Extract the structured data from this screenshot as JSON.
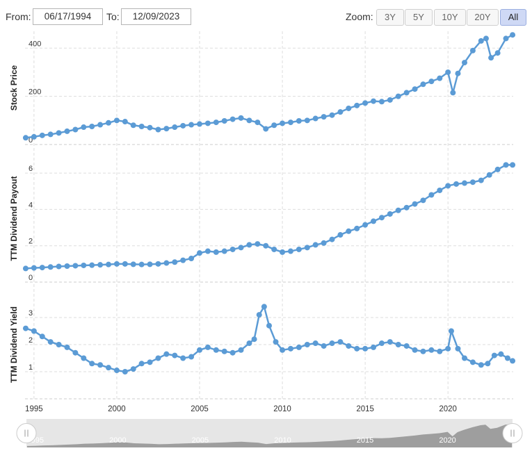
{
  "toolbar": {
    "from_label": "From:",
    "from_value": "06/17/1994",
    "to_label": "To:",
    "to_value": "12/09/2023",
    "zoom_label": "Zoom:",
    "zoom_buttons": [
      "3Y",
      "5Y",
      "10Y",
      "20Y",
      "All"
    ],
    "zoom_active": "All"
  },
  "colors": {
    "series": "#5b9bd5",
    "grid": "#dddddd",
    "navigator_fill": "#9e9e9e",
    "navigator_bg": "#e6e6e6"
  },
  "chart_data": {
    "type": "line",
    "x_axis": {
      "type": "date",
      "range": [
        "1994-06-17",
        "2023-12-09"
      ],
      "ticks": [
        "1995",
        "2000",
        "2005",
        "2010",
        "2015",
        "2020"
      ]
    },
    "grid": true,
    "panels": [
      {
        "ylabel": "Stock Price",
        "ylim": [
          0,
          470
        ],
        "yticks": [
          0,
          200,
          400
        ],
        "x": [
          1994.5,
          1995,
          1995.5,
          1996,
          1996.5,
          1997,
          1997.5,
          1998,
          1998.5,
          1999,
          1999.5,
          2000,
          2000.5,
          2001,
          2001.5,
          2002,
          2002.5,
          2003,
          2003.5,
          2004,
          2004.5,
          2005,
          2005.5,
          2006,
          2006.5,
          2007,
          2007.5,
          2008,
          2008.5,
          2009,
          2009.5,
          2010,
          2010.5,
          2011,
          2011.5,
          2012,
          2012.5,
          2013,
          2013.5,
          2014,
          2014.5,
          2015,
          2015.5,
          2016,
          2016.5,
          2017,
          2017.5,
          2018,
          2018.5,
          2019,
          2019.5,
          2020,
          2020.3,
          2020.6,
          2021,
          2021.5,
          2022,
          2022.3,
          2022.6,
          2023,
          2023.5,
          2023.9
        ],
        "y": [
          28,
          32,
          38,
          42,
          48,
          55,
          62,
          72,
          75,
          82,
          90,
          100,
          95,
          80,
          75,
          70,
          62,
          66,
          72,
          78,
          82,
          85,
          88,
          92,
          98,
          105,
          110,
          100,
          92,
          65,
          80,
          88,
          92,
          98,
          100,
          108,
          115,
          122,
          135,
          150,
          162,
          172,
          180,
          178,
          185,
          200,
          215,
          230,
          250,
          262,
          275,
          300,
          215,
          295,
          340,
          390,
          430,
          440,
          360,
          380,
          440,
          455
        ],
        "series_name": ""
      },
      {
        "ylabel": "TTM Dividend Payout",
        "ylim": [
          0,
          7
        ],
        "yticks": [
          0,
          2,
          4,
          6
        ],
        "x": [
          1994.5,
          1995,
          1995.5,
          1996,
          1996.5,
          1997,
          1997.5,
          1998,
          1998.5,
          1999,
          1999.5,
          2000,
          2000.5,
          2001,
          2001.5,
          2002,
          2002.5,
          2003,
          2003.5,
          2004,
          2004.5,
          2005,
          2005.5,
          2006,
          2006.5,
          2007,
          2007.5,
          2008,
          2008.5,
          2009,
          2009.5,
          2010,
          2010.5,
          2011,
          2011.5,
          2012,
          2012.5,
          2013,
          2013.5,
          2014,
          2014.5,
          2015,
          2015.5,
          2016,
          2016.5,
          2017,
          2017.5,
          2018,
          2018.5,
          2019,
          2019.5,
          2020,
          2020.5,
          2021,
          2021.5,
          2022,
          2022.5,
          2023,
          2023.5,
          2023.9
        ],
        "y": [
          0.75,
          0.78,
          0.8,
          0.83,
          0.86,
          0.88,
          0.9,
          0.92,
          0.93,
          0.95,
          0.97,
          1.0,
          1.0,
          0.98,
          0.97,
          0.98,
          1.0,
          1.05,
          1.1,
          1.2,
          1.3,
          1.6,
          1.7,
          1.65,
          1.7,
          1.8,
          1.9,
          2.05,
          2.1,
          2.0,
          1.8,
          1.65,
          1.7,
          1.8,
          1.9,
          2.05,
          2.15,
          2.35,
          2.6,
          2.8,
          2.95,
          3.15,
          3.35,
          3.55,
          3.75,
          3.95,
          4.1,
          4.3,
          4.5,
          4.8,
          5.05,
          5.3,
          5.4,
          5.45,
          5.5,
          5.6,
          5.9,
          6.2,
          6.45,
          6.45
        ],
        "series_name": ""
      },
      {
        "ylabel": "TTM Dividend Yield",
        "ylim": [
          0,
          4
        ],
        "yticks": [
          1,
          2,
          3
        ],
        "x": [
          1994.5,
          1995,
          1995.5,
          1996,
          1996.5,
          1997,
          1997.5,
          1998,
          1998.5,
          1999,
          1999.5,
          2000,
          2000.5,
          2001,
          2001.5,
          2002,
          2002.5,
          2003,
          2003.5,
          2004,
          2004.5,
          2005,
          2005.5,
          2006,
          2006.5,
          2007,
          2007.5,
          2008,
          2008.3,
          2008.6,
          2008.9,
          2009.2,
          2009.6,
          2010,
          2010.5,
          2011,
          2011.5,
          2012,
          2012.5,
          2013,
          2013.5,
          2014,
          2014.5,
          2015,
          2015.5,
          2016,
          2016.5,
          2017,
          2017.5,
          2018,
          2018.5,
          2019,
          2019.5,
          2020,
          2020.2,
          2020.6,
          2021,
          2021.5,
          2022,
          2022.4,
          2022.8,
          2023.2,
          2023.6,
          2023.9
        ],
        "y": [
          2.6,
          2.5,
          2.3,
          2.1,
          2.0,
          1.9,
          1.7,
          1.5,
          1.3,
          1.25,
          1.15,
          1.05,
          1.0,
          1.1,
          1.3,
          1.35,
          1.5,
          1.65,
          1.6,
          1.5,
          1.55,
          1.8,
          1.9,
          1.8,
          1.75,
          1.7,
          1.8,
          2.05,
          2.2,
          3.1,
          3.4,
          2.7,
          2.1,
          1.8,
          1.85,
          1.9,
          2.0,
          2.05,
          1.95,
          2.05,
          2.1,
          1.95,
          1.85,
          1.85,
          1.9,
          2.05,
          2.1,
          2.0,
          1.95,
          1.8,
          1.75,
          1.8,
          1.75,
          1.85,
          2.5,
          1.85,
          1.5,
          1.35,
          1.25,
          1.3,
          1.6,
          1.65,
          1.5,
          1.4
        ],
        "series_name": ""
      }
    ],
    "navigator": {
      "ticks": [
        "1995",
        "2000",
        "2005",
        "2010",
        "2015",
        "2020"
      ]
    }
  }
}
